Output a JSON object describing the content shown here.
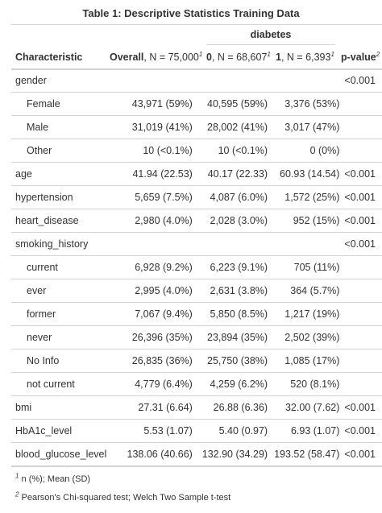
{
  "title": "Table 1: Descriptive Statistics Training Data",
  "spanner": "diabetes",
  "headers": {
    "characteristic": "Characteristic",
    "overall_bold": "Overall",
    "overall_n": ", N = 75,000",
    "g0_bold": "0",
    "g0_n": ", N = 68,607",
    "g1_bold": "1",
    "g1_n": ", N = 6,393",
    "pvalue": "p-value",
    "fn1_mark": "1",
    "fn2_mark": "2"
  },
  "rows": [
    {
      "label": "gender",
      "sub": false,
      "overall": "",
      "g0": "",
      "g1": "",
      "p": "<0.001"
    },
    {
      "label": "Female",
      "sub": true,
      "overall": "43,971 (59%)",
      "g0": "40,595 (59%)",
      "g1": "3,376 (53%)",
      "p": ""
    },
    {
      "label": "Male",
      "sub": true,
      "overall": "31,019 (41%)",
      "g0": "28,002 (41%)",
      "g1": "3,017 (47%)",
      "p": ""
    },
    {
      "label": "Other",
      "sub": true,
      "overall": "10 (<0.1%)",
      "g0": "10 (<0.1%)",
      "g1": "0 (0%)",
      "p": ""
    },
    {
      "label": "age",
      "sub": false,
      "overall": "41.94 (22.53)",
      "g0": "40.17 (22.33)",
      "g1": "60.93 (14.54)",
      "p": "<0.001"
    },
    {
      "label": "hypertension",
      "sub": false,
      "overall": "5,659 (7.5%)",
      "g0": "4,087 (6.0%)",
      "g1": "1,572 (25%)",
      "p": "<0.001"
    },
    {
      "label": "heart_disease",
      "sub": false,
      "overall": "2,980 (4.0%)",
      "g0": "2,028 (3.0%)",
      "g1": "952 (15%)",
      "p": "<0.001"
    },
    {
      "label": "smoking_history",
      "sub": false,
      "overall": "",
      "g0": "",
      "g1": "",
      "p": "<0.001"
    },
    {
      "label": "current",
      "sub": true,
      "overall": "6,928 (9.2%)",
      "g0": "6,223 (9.1%)",
      "g1": "705 (11%)",
      "p": ""
    },
    {
      "label": "ever",
      "sub": true,
      "overall": "2,995 (4.0%)",
      "g0": "2,631 (3.8%)",
      "g1": "364 (5.7%)",
      "p": ""
    },
    {
      "label": "former",
      "sub": true,
      "overall": "7,067 (9.4%)",
      "g0": "5,850 (8.5%)",
      "g1": "1,217 (19%)",
      "p": ""
    },
    {
      "label": "never",
      "sub": true,
      "overall": "26,396 (35%)",
      "g0": "23,894 (35%)",
      "g1": "2,502 (39%)",
      "p": ""
    },
    {
      "label": "No Info",
      "sub": true,
      "overall": "26,835 (36%)",
      "g0": "25,750 (38%)",
      "g1": "1,085 (17%)",
      "p": ""
    },
    {
      "label": "not current",
      "sub": true,
      "overall": "4,779 (6.4%)",
      "g0": "4,259 (6.2%)",
      "g1": "520 (8.1%)",
      "p": ""
    },
    {
      "label": "bmi",
      "sub": false,
      "overall": "27.31 (6.64)",
      "g0": "26.88 (6.36)",
      "g1": "32.00 (7.62)",
      "p": "<0.001"
    },
    {
      "label": "HbA1c_level",
      "sub": false,
      "overall": "5.53 (1.07)",
      "g0": "5.40 (0.97)",
      "g1": "6.93 (1.07)",
      "p": "<0.001"
    },
    {
      "label": "blood_glucose_level",
      "sub": false,
      "overall": "138.06 (40.66)",
      "g0": "132.90 (34.29)",
      "g1": "193.52 (58.47)",
      "p": "<0.001"
    }
  ],
  "footnotes": [
    {
      "mark": "1",
      "text": "n (%); Mean (SD)"
    },
    {
      "mark": "2",
      "text": "Pearson's Chi-squared test; Welch Two Sample t-test"
    }
  ]
}
